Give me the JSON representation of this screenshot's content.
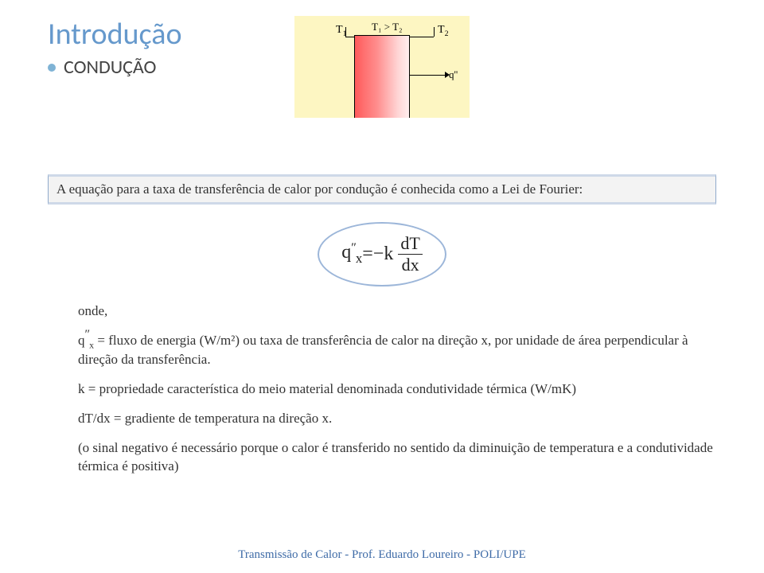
{
  "title": "Introdução",
  "subtitle": "CONDUÇÃO",
  "diagram": {
    "t1": "T",
    "t1_sub": "1",
    "t2": "T",
    "t2_sub": "2",
    "t1gt2": "T₁ > T₂",
    "q": "q''",
    "gradient_colors": [
      "#ff5b5b",
      "#ffeeee"
    ],
    "bg_color": "#fdf6c2"
  },
  "law_statement": "A equação para a taxa de transferência de calor por condução é conhecida como a Lei de Fourier:",
  "formula": {
    "lhs_q": "q",
    "lhs_sub": "x",
    "lhs_prime": "″",
    "eq": " = ",
    "minus_k": "−k",
    "num": "dT",
    "den": "dx"
  },
  "onde_label": "onde,",
  "flux_line_prefix": "q",
  "flux_line_sub": "x",
  "flux_line_prime": "″",
  "flux_line_rest": " = fluxo de energia (W/m²) ou taxa de transferência de calor na direção x, por unidade de área perpendicular à direção da transferência.",
  "k_line": "k = propriedade característica do meio material denominada condutividade térmica (W/mK)",
  "dtdx_line": "dT/dx = gradiente de temperatura na direção x.",
  "note_line": "(o sinal negativo é necessário porque o calor é transferido no sentido da diminuição de temperatura e a condutividade térmica é positiva)",
  "footer": "Transmissão de Calor - Prof. Eduardo Loureiro - POLI/UPE",
  "colors": {
    "title": "#6699cc",
    "bullet": "#7fb3d5",
    "footer": "#3e6ba7",
    "box_border": "#8faacc",
    "oval_border": "#9cb6d9"
  }
}
